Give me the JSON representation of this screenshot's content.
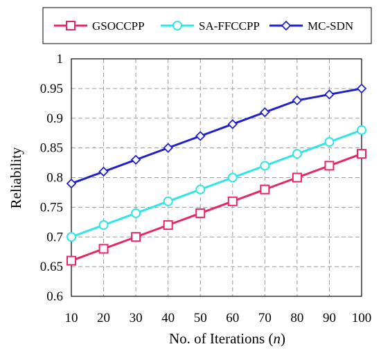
{
  "chart_data": {
    "type": "line",
    "xlabel": "No. of Iterations (",
    "xlabel_var": "n",
    "xlabel_end": ")",
    "ylabel": "Reliability",
    "x": [
      10,
      20,
      30,
      40,
      50,
      60,
      70,
      80,
      90,
      100
    ],
    "xticks": [
      "10",
      "20",
      "30",
      "40",
      "50",
      "60",
      "70",
      "80",
      "90",
      "100"
    ],
    "yticks": [
      "0.6",
      "0.65",
      "0.7",
      "0.75",
      "0.8",
      "0.85",
      "0.9",
      "0.95",
      "1"
    ],
    "ylim": [
      0.6,
      1.0
    ],
    "xlim": [
      10,
      100
    ],
    "grid": true,
    "legend_position": "top",
    "series": [
      {
        "name": "GSOCCPP",
        "color": "#e8246b",
        "marker": "square",
        "values": [
          0.66,
          0.68,
          0.7,
          0.72,
          0.74,
          0.76,
          0.78,
          0.8,
          0.82,
          0.84
        ]
      },
      {
        "name": "SA-FFCCPP",
        "color": "#2ee6e6",
        "marker": "circle",
        "values": [
          0.7,
          0.72,
          0.74,
          0.76,
          0.78,
          0.8,
          0.82,
          0.84,
          0.86,
          0.88
        ]
      },
      {
        "name": "MC-SDN",
        "color": "#1f1fcf",
        "marker": "diamond",
        "values": [
          0.79,
          0.81,
          0.83,
          0.85,
          0.87,
          0.89,
          0.91,
          0.93,
          0.94,
          0.95
        ]
      }
    ]
  }
}
